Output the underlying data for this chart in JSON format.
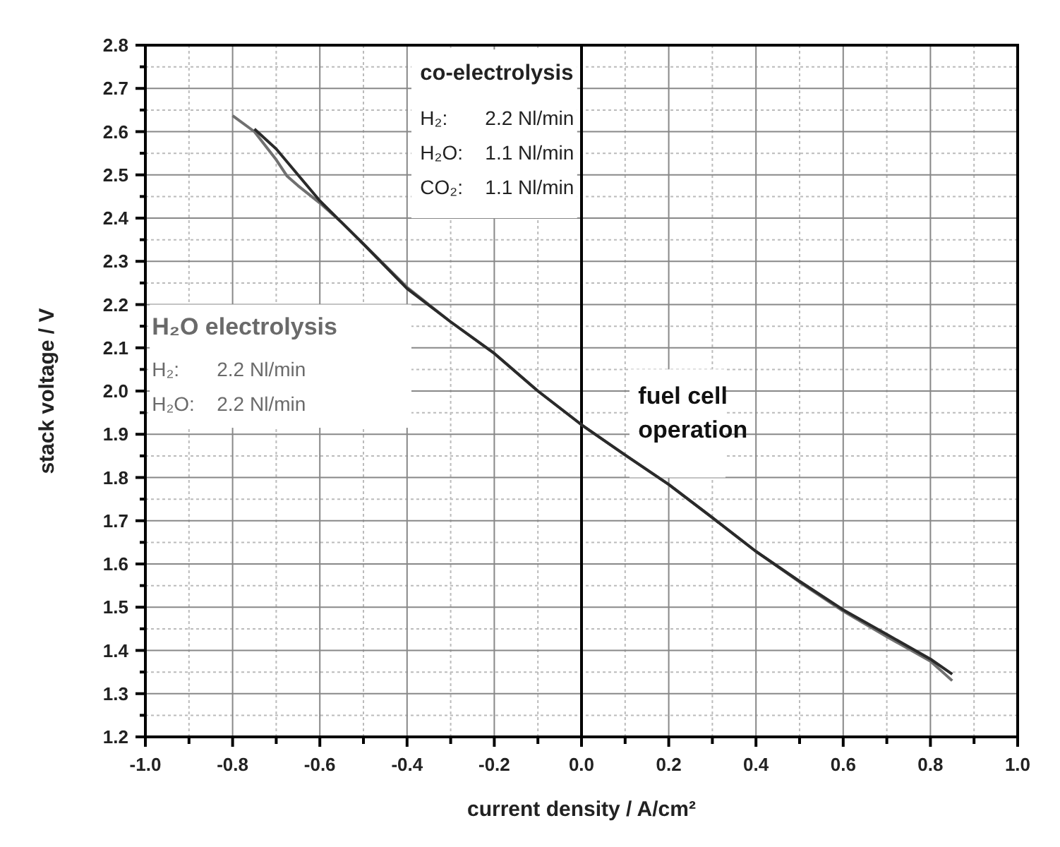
{
  "chart_data": {
    "type": "line",
    "xlabel": "current density / A/cm²",
    "ylabel": "stack voltage / V",
    "xlim": [
      -1.0,
      1.0
    ],
    "xticks": [
      {
        "value": -1.0,
        "label": "-1.0"
      },
      {
        "value": -0.8,
        "label": "-0.8"
      },
      {
        "value": -0.6,
        "label": "-0.6"
      },
      {
        "value": -0.4,
        "label": "-0.4"
      },
      {
        "value": -0.2,
        "label": "-0.2"
      },
      {
        "value": 0,
        "label": "0.0"
      },
      {
        "value": 0.2,
        "label": "0.2"
      },
      {
        "value": 0.4,
        "label": "0.4"
      },
      {
        "value": 0.6,
        "label": "0.6"
      },
      {
        "value": 0.8,
        "label": "0.8"
      },
      {
        "value": 1.0,
        "label": "1.0"
      }
    ],
    "ylim": [
      1.2,
      2.8
    ],
    "yticks": [
      1.2,
      1.3,
      1.4,
      1.5,
      1.6,
      1.7,
      1.8,
      1.9,
      {
        "value": 2.0,
        "label": "2.0"
      },
      2.1,
      2.2,
      2.3,
      2.4,
      2.5,
      2.6,
      2.7,
      2.8
    ],
    "grid": true,
    "marker": "none",
    "line_style": "solid",
    "ref_lines": [
      {
        "axis": "x",
        "value": 0,
        "color": "#000000"
      }
    ],
    "series": [
      {
        "color": "#707070",
        "x": [
          -0.8,
          -0.75,
          -0.7,
          -0.675,
          -0.65,
          -0.6,
          -0.55,
          -0.5,
          -0.4,
          -0.3,
          -0.2,
          -0.1,
          0,
          0.1,
          0.2,
          0.3,
          0.4,
          0.5,
          0.6,
          0.7,
          0.8,
          0.85
        ],
        "values": [
          2.637,
          2.6,
          2.535,
          2.497,
          2.475,
          2.435,
          2.39,
          2.34,
          2.24,
          2.16,
          2.087,
          2.0,
          1.922,
          1.852,
          1.784,
          1.707,
          1.629,
          1.558,
          1.491,
          1.432,
          1.375,
          1.33
        ]
      },
      {
        "color": "#2a2a2a",
        "x": [
          -0.75,
          -0.7,
          -0.65,
          -0.6,
          -0.55,
          -0.5,
          -0.4,
          -0.3,
          -0.2,
          -0.1,
          0,
          0.1,
          0.2,
          0.3,
          0.4,
          0.5,
          0.6,
          0.7,
          0.8,
          0.85
        ],
        "values": [
          2.606,
          2.56,
          2.5,
          2.44,
          2.39,
          2.34,
          2.237,
          2.16,
          2.087,
          2.0,
          1.922,
          1.852,
          1.784,
          1.707,
          1.629,
          1.56,
          1.494,
          1.437,
          1.38,
          1.345
        ]
      }
    ],
    "annotations": [
      "co-electrolysis",
      "H₂: 2.2 Nl/min",
      "H₂O: 1.1 Nl/min",
      "CO₂: 1.1 Nl/min",
      "H₂O electrolysis",
      "H₂: 2.2 Nl/min",
      "H₂O: 2.2 Nl/min",
      "fuel cell operation"
    ]
  }
}
